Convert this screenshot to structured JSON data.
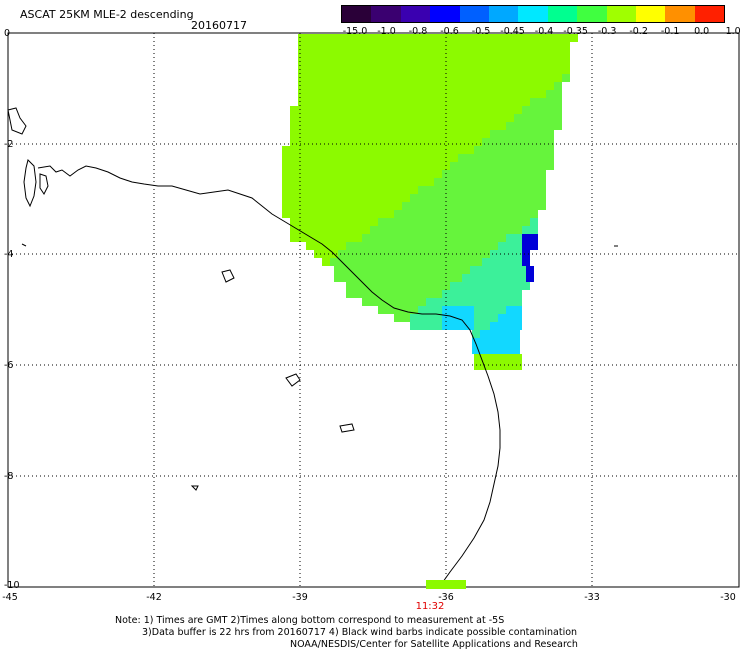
{
  "header": {
    "title": "ASCAT 25KM MLE-2 descending",
    "date": "20160717"
  },
  "colorbar": {
    "labels": [
      "-15.0",
      "-1.0",
      "-0.8",
      "-0.6",
      "-0.5",
      "-0.45",
      "-0.4",
      "-0.35",
      "-0.3",
      "-0.2",
      "-0.1",
      "0.0",
      "1.0"
    ],
    "colors": [
      "#2a0038",
      "#3a0070",
      "#3a00b0",
      "#0000ff",
      "#0060ff",
      "#00a8ff",
      "#00e8ff",
      "#00ff90",
      "#40ff40",
      "#a0ff00",
      "#ffff00",
      "#ff9000",
      "#ff2000"
    ]
  },
  "axes": {
    "y_labels": [
      "0",
      "-2",
      "-4",
      "-6",
      "-8",
      "-10"
    ],
    "x_labels": [
      "-45",
      "-42",
      "-39",
      "-36",
      "-33",
      "-30"
    ]
  },
  "time_label": "11:32",
  "notes": [
    "Note: 1) Times are GMT 2)Times along bottom correspond to measurement at -5S",
    "3)Data buffer is 22 hrs from 20160717 4) Black wind barbs indicate possible contamination",
    "NOAA/NESDIS/Center for Satellite Applications and Research"
  ],
  "palette": {
    "green": "#8cfa00",
    "green2": "#66f43c",
    "teal": "#3cf09a",
    "cyan": "#12d8ff",
    "blue": "#0a6cff",
    "deep": "#0000d8"
  }
}
